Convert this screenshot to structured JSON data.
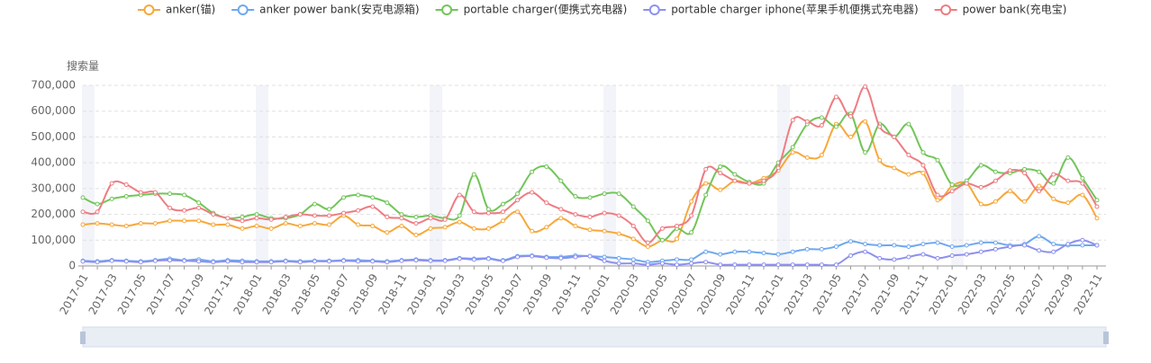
{
  "chart_data": {
    "type": "line",
    "y_axis_label": "搜索量",
    "categories": [
      "2017-01",
      null,
      "2017-03",
      null,
      "2017-05",
      null,
      "2017-07",
      null,
      "2017-09",
      null,
      "2017-11",
      null,
      "2018-01",
      null,
      "2018-03",
      null,
      "2018-05",
      null,
      "2018-07",
      null,
      "2018-09",
      null,
      "2018-11",
      null,
      "2019-01",
      null,
      "2019-03",
      null,
      "2019-05",
      null,
      "2019-07",
      null,
      "2019-09",
      null,
      "2019-11",
      null,
      "2020-01",
      null,
      "2020-03",
      null,
      "2020-05",
      null,
      "2020-07",
      null,
      "2020-09",
      null,
      "2020-11",
      null,
      "2021-01",
      null,
      "2021-03",
      null,
      "2021-05",
      null,
      "2021-07",
      null,
      "2021-09",
      null,
      "2021-11",
      null,
      "2022-01",
      null,
      "2022-03",
      null,
      "2022-05",
      null,
      "2022-07",
      null,
      "2022-09",
      null,
      "2022-11"
    ],
    "series": [
      {
        "name": "anker(锚)",
        "color": "#f7a83a",
        "values": [
          160000,
          165000,
          160000,
          155000,
          165000,
          165000,
          175000,
          175000,
          175000,
          160000,
          160000,
          145000,
          155000,
          145000,
          165000,
          155000,
          165000,
          160000,
          195000,
          160000,
          155000,
          130000,
          155000,
          120000,
          145000,
          150000,
          170000,
          145000,
          145000,
          175000,
          210000,
          135000,
          150000,
          185000,
          155000,
          140000,
          135000,
          125000,
          105000,
          75000,
          100000,
          105000,
          250000,
          320000,
          295000,
          330000,
          320000,
          340000,
          370000,
          440000,
          420000,
          430000,
          550000,
          500000,
          560000,
          410000,
          380000,
          355000,
          360000,
          255000,
          310000,
          320000,
          240000,
          250000,
          290000,
          250000,
          310000,
          260000,
          245000,
          275000,
          185000
        ]
      },
      {
        "name": "anker power bank(安克电源箱)",
        "color": "#6ea8f0",
        "values": [
          20000,
          18000,
          22000,
          20000,
          18000,
          22000,
          28000,
          22000,
          25000,
          18000,
          22000,
          20000,
          18000,
          18000,
          20000,
          18000,
          20000,
          20000,
          22000,
          22000,
          20000,
          18000,
          22000,
          25000,
          22000,
          22000,
          30000,
          28000,
          30000,
          22000,
          38000,
          40000,
          35000,
          35000,
          40000,
          38000,
          35000,
          30000,
          25000,
          15000,
          20000,
          25000,
          25000,
          55000,
          45000,
          55000,
          55000,
          50000,
          45000,
          55000,
          65000,
          65000,
          75000,
          95000,
          85000,
          80000,
          80000,
          75000,
          85000,
          90000,
          75000,
          80000,
          90000,
          90000,
          80000,
          85000,
          115000,
          85000,
          80000,
          80000,
          80000
        ]
      },
      {
        "name": "portable charger(便携式充电器)",
        "color": "#72c55a",
        "values": [
          265000,
          240000,
          260000,
          270000,
          275000,
          280000,
          280000,
          275000,
          245000,
          205000,
          185000,
          190000,
          200000,
          185000,
          185000,
          200000,
          240000,
          220000,
          265000,
          275000,
          265000,
          245000,
          200000,
          190000,
          195000,
          185000,
          195000,
          355000,
          220000,
          240000,
          280000,
          365000,
          385000,
          330000,
          270000,
          265000,
          280000,
          280000,
          230000,
          175000,
          100000,
          145000,
          130000,
          275000,
          385000,
          355000,
          325000,
          320000,
          400000,
          460000,
          550000,
          575000,
          540000,
          590000,
          440000,
          550000,
          500000,
          550000,
          440000,
          410000,
          315000,
          330000,
          390000,
          365000,
          360000,
          375000,
          365000,
          320000,
          420000,
          340000,
          255000
        ]
      },
      {
        "name": "portable charger iphone(苹果手机便携式充电器)",
        "color": "#8d90ee",
        "values": [
          18000,
          15000,
          20000,
          18000,
          15000,
          20000,
          22000,
          20000,
          18000,
          15000,
          18000,
          15000,
          15000,
          15000,
          18000,
          15000,
          18000,
          18000,
          20000,
          18000,
          18000,
          15000,
          20000,
          22000,
          20000,
          20000,
          28000,
          25000,
          28000,
          20000,
          35000,
          38000,
          32000,
          30000,
          35000,
          38000,
          20000,
          10000,
          10000,
          5000,
          10000,
          5000,
          10000,
          15000,
          5000,
          5000,
          5000,
          5000,
          5000,
          5000,
          5000,
          5000,
          5000,
          40000,
          55000,
          30000,
          25000,
          35000,
          45000,
          30000,
          40000,
          45000,
          55000,
          65000,
          75000,
          80000,
          60000,
          55000,
          85000,
          100000,
          80000
        ]
      },
      {
        "name": "power bank(充电宝)",
        "color": "#ee7c82",
        "values": [
          210000,
          210000,
          320000,
          315000,
          285000,
          285000,
          225000,
          215000,
          225000,
          200000,
          185000,
          175000,
          185000,
          180000,
          190000,
          200000,
          195000,
          195000,
          205000,
          215000,
          230000,
          190000,
          185000,
          165000,
          185000,
          180000,
          275000,
          210000,
          205000,
          210000,
          255000,
          285000,
          245000,
          220000,
          200000,
          190000,
          205000,
          195000,
          155000,
          90000,
          145000,
          155000,
          195000,
          375000,
          360000,
          330000,
          320000,
          330000,
          380000,
          565000,
          560000,
          545000,
          655000,
          580000,
          695000,
          540000,
          500000,
          430000,
          390000,
          275000,
          290000,
          320000,
          305000,
          330000,
          370000,
          360000,
          290000,
          355000,
          330000,
          320000,
          230000
        ]
      }
    ],
    "ylim": [
      0,
      700000
    ],
    "yticks": [
      0,
      {
        "value": 100000,
        "label": "100,000"
      },
      {
        "value": 200000,
        "label": "200,000"
      },
      {
        "value": 300000,
        "label": "300,000"
      },
      {
        "value": 400000,
        "label": "400,000"
      },
      {
        "value": 500000,
        "label": "500,000"
      },
      {
        "value": 600000,
        "label": "600,000"
      },
      {
        "value": 700000,
        "label": "700,000"
      }
    ],
    "grid": true,
    "legend": "top"
  }
}
